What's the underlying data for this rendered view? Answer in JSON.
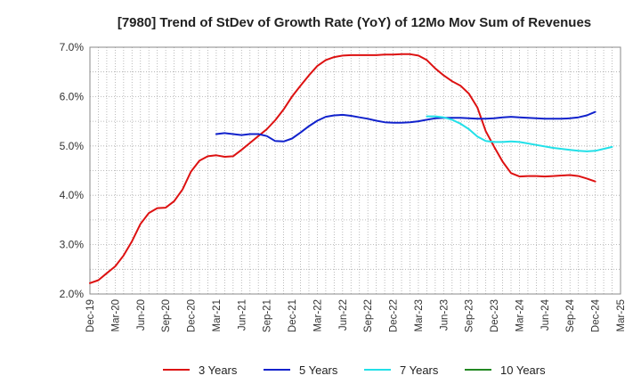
{
  "chart_data": {
    "type": "line",
    "title": "[7980]  Trend of StDev of Growth Rate (YoY) of 12Mo Mov Sum of Revenues",
    "xlabel": "",
    "ylabel": "",
    "ylim": [
      2.0,
      7.0
    ],
    "yticks": [
      2.0,
      3.0,
      4.0,
      5.0,
      6.0,
      7.0
    ],
    "ytick_labels": [
      "2.0%",
      "3.0%",
      "4.0%",
      "5.0%",
      "6.0%",
      "7.0%"
    ],
    "x_tick_labels": [
      "Dec-19",
      "Mar-20",
      "Jun-20",
      "Sep-20",
      "Dec-20",
      "Mar-21",
      "Jun-21",
      "Sep-21",
      "Dec-21",
      "Mar-22",
      "Jun-22",
      "Sep-22",
      "Dec-22",
      "Mar-23",
      "Jun-23",
      "Sep-23",
      "Dec-23",
      "Mar-24",
      "Jun-24",
      "Sep-24",
      "Dec-24",
      "Mar-25"
    ],
    "x_range_months": [
      0,
      63
    ],
    "grid": true,
    "legend_position": "bottom",
    "series": [
      {
        "name": "3 Years",
        "color": "#dd1111",
        "start_month": 0,
        "values": [
          2.22,
          2.28,
          2.42,
          2.56,
          2.78,
          3.07,
          3.42,
          3.64,
          3.74,
          3.75,
          3.88,
          4.12,
          4.48,
          4.7,
          4.79,
          4.81,
          4.78,
          4.79,
          4.92,
          5.06,
          5.2,
          5.34,
          5.52,
          5.74,
          6.0,
          6.22,
          6.43,
          6.62,
          6.74,
          6.8,
          6.83,
          6.84,
          6.84,
          6.84,
          6.84,
          6.85,
          6.85,
          6.86,
          6.86,
          6.83,
          6.74,
          6.57,
          6.43,
          6.31,
          6.22,
          6.06,
          5.78,
          5.3,
          4.98,
          4.68,
          4.45,
          4.38,
          4.39,
          4.39,
          4.38,
          4.39,
          4.4,
          4.41,
          4.39,
          4.34,
          4.28
        ]
      },
      {
        "name": "5 Years",
        "color": "#1122cc",
        "start_month": 15,
        "values": [
          5.24,
          5.26,
          5.24,
          5.22,
          5.24,
          5.24,
          5.2,
          5.1,
          5.09,
          5.15,
          5.27,
          5.4,
          5.51,
          5.59,
          5.62,
          5.63,
          5.61,
          5.58,
          5.55,
          5.51,
          5.48,
          5.47,
          5.47,
          5.48,
          5.5,
          5.53,
          5.56,
          5.57,
          5.57,
          5.57,
          5.56,
          5.55,
          5.55,
          5.56,
          5.58,
          5.59,
          5.58,
          5.57,
          5.56,
          5.55,
          5.55,
          5.55,
          5.56,
          5.58,
          5.62,
          5.69
        ]
      },
      {
        "name": "7 Years",
        "color": "#22e0e8",
        "start_month": 40,
        "values": [
          5.6,
          5.6,
          5.58,
          5.53,
          5.45,
          5.34,
          5.19,
          5.1,
          5.08,
          5.08,
          5.09,
          5.08,
          5.05,
          5.02,
          4.99,
          4.96,
          4.94,
          4.92,
          4.9,
          4.89,
          4.9,
          4.94,
          4.98
        ]
      },
      {
        "name": "10 Years",
        "color": "#228822",
        "start_month": 0,
        "values": []
      }
    ]
  }
}
